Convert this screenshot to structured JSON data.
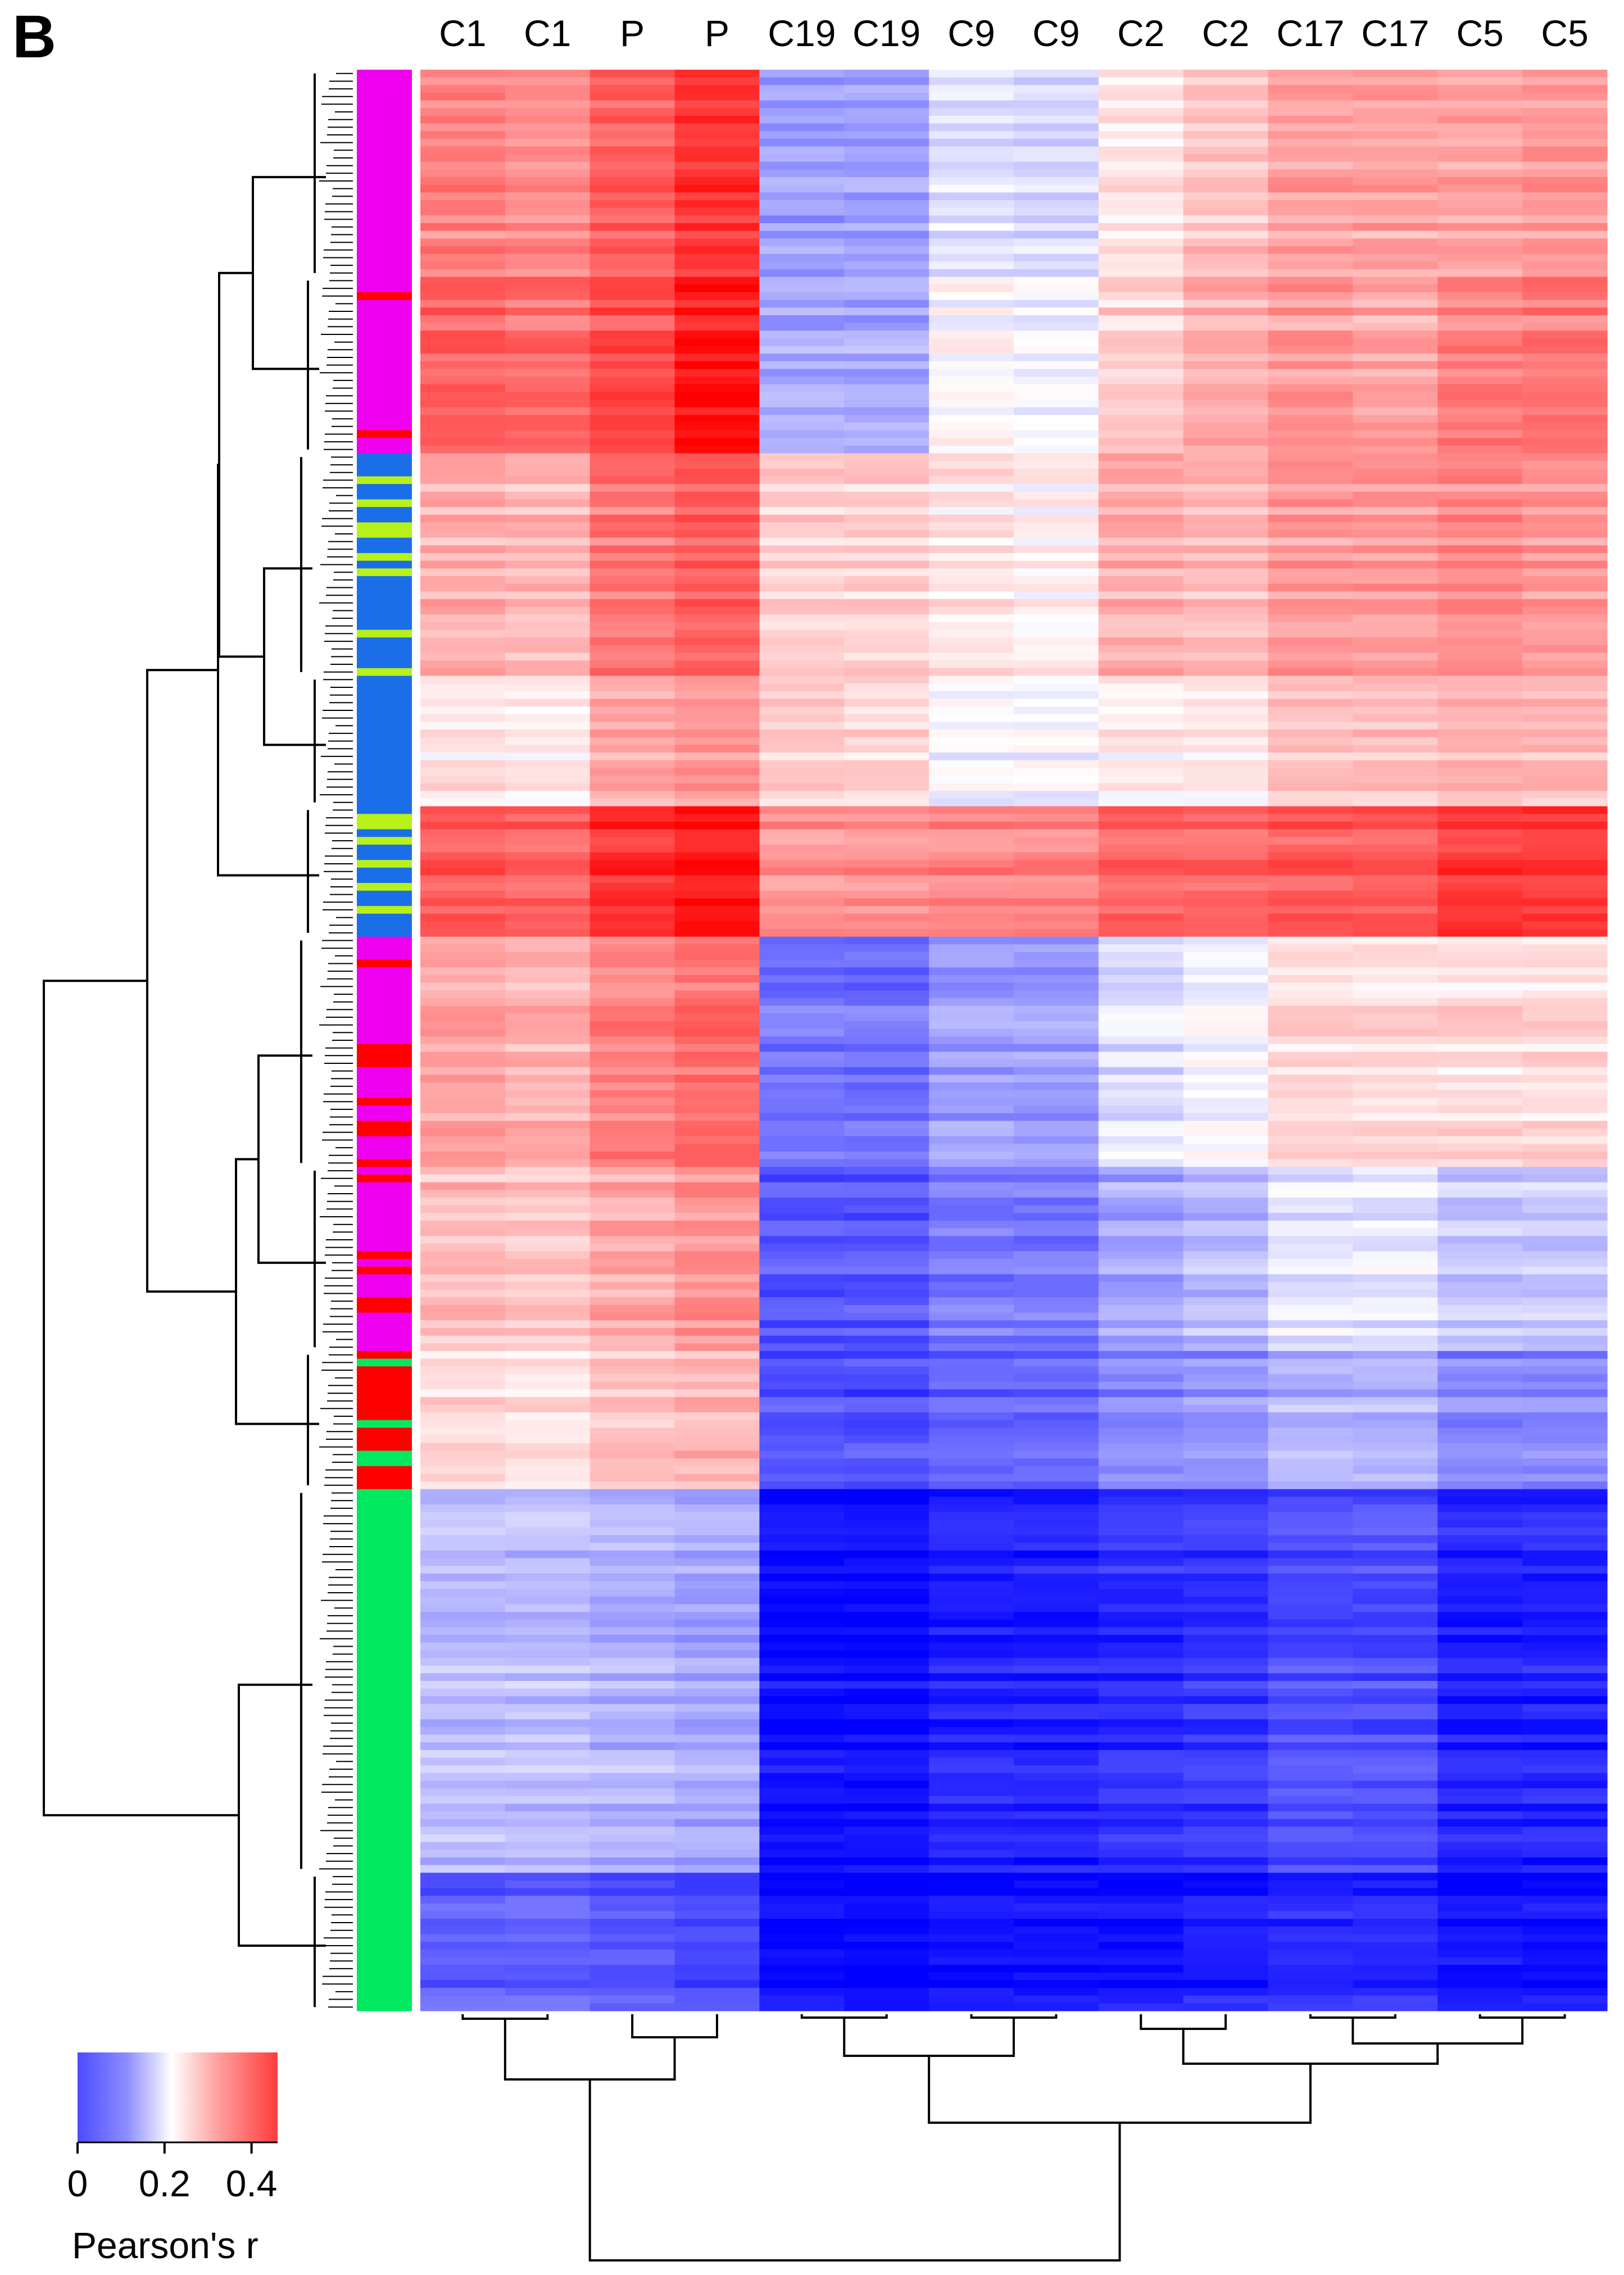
{
  "chart_data": {
    "type": "heatmap",
    "panel_label": "B",
    "columns": [
      "C1",
      "C1",
      "P",
      "P",
      "C19",
      "C19",
      "C9",
      "C9",
      "C2",
      "C2",
      "C17",
      "C17",
      "C5",
      "C5"
    ],
    "row_groups": [
      {
        "cluster": "magenta",
        "rows": 27,
        "values": [
          0.34,
          0.33,
          0.37,
          0.41,
          0.14,
          0.14,
          0.2,
          0.19,
          0.25,
          0.28,
          0.31,
          0.31,
          0.31,
          0.32
        ]
      },
      {
        "cluster": "magenta-red",
        "rows": 23,
        "values": [
          0.37,
          0.36,
          0.39,
          0.44,
          0.15,
          0.15,
          0.23,
          0.22,
          0.27,
          0.3,
          0.32,
          0.31,
          0.34,
          0.35
        ]
      },
      {
        "cluster": "blue-yellow",
        "rows": 29,
        "values": [
          0.3,
          0.29,
          0.35,
          0.37,
          0.27,
          0.27,
          0.25,
          0.24,
          0.3,
          0.29,
          0.32,
          0.32,
          0.33,
          0.32
        ]
      },
      {
        "cluster": "blue",
        "rows": 17,
        "values": [
          0.25,
          0.24,
          0.3,
          0.32,
          0.27,
          0.26,
          0.22,
          0.22,
          0.24,
          0.24,
          0.28,
          0.28,
          0.29,
          0.29
        ]
      },
      {
        "cluster": "blue-yellow",
        "rows": 17,
        "values": [
          0.38,
          0.37,
          0.42,
          0.44,
          0.33,
          0.33,
          0.34,
          0.34,
          0.37,
          0.37,
          0.38,
          0.38,
          0.41,
          0.41
        ]
      },
      {
        "cluster": "magenta-red",
        "rows": 30,
        "values": [
          0.31,
          0.3,
          0.34,
          0.36,
          0.1,
          0.1,
          0.14,
          0.14,
          0.2,
          0.22,
          0.26,
          0.26,
          0.26,
          0.26
        ]
      },
      {
        "cluster": "magenta-red",
        "rows": 24,
        "values": [
          0.29,
          0.28,
          0.31,
          0.33,
          0.08,
          0.08,
          0.11,
          0.11,
          0.15,
          0.17,
          0.21,
          0.21,
          0.18,
          0.18
        ]
      },
      {
        "cluster": "red-green",
        "rows": 18,
        "values": [
          0.26,
          0.25,
          0.28,
          0.29,
          0.07,
          0.07,
          0.09,
          0.09,
          0.12,
          0.13,
          0.16,
          0.16,
          0.12,
          0.12
        ]
      },
      {
        "cluster": "green",
        "rows": 50,
        "values": [
          0.17,
          0.17,
          0.16,
          0.15,
          0.01,
          0.01,
          0.03,
          0.03,
          0.04,
          0.05,
          0.07,
          0.07,
          0.03,
          0.03
        ]
      },
      {
        "cluster": "green",
        "rows": 18,
        "values": [
          0.08,
          0.08,
          0.07,
          0.06,
          0.0,
          0.0,
          0.01,
          0.01,
          0.01,
          0.02,
          0.03,
          0.03,
          0.01,
          0.01
        ]
      }
    ],
    "colorbar": {
      "label": "Pearson's r",
      "range": [
        0,
        0.46
      ],
      "ticks": [
        {
          "value": 0,
          "label": "0"
        },
        {
          "value": 0.2,
          "label": "0.2"
        },
        {
          "value": 0.4,
          "label": "0.4"
        }
      ],
      "colors": {
        "low": "#0000ff",
        "mid": "#ffffff",
        "high": "#ff0000"
      }
    },
    "cluster_colors": {
      "magenta": "#ee00ee",
      "red": "#ff0000",
      "blue": "#1a6fe8",
      "yellow": "#b8f01a",
      "green": "#00e860"
    },
    "row_dendrogram": "hierarchical clustering of rows (left)",
    "column_dendrogram": "hierarchical clustering of columns (bottom)"
  }
}
